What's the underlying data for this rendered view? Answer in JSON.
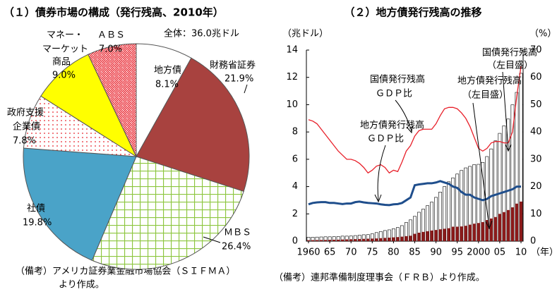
{
  "chart_data": [
    {
      "type": "pie",
      "title": "（１）債券市場の構成（発行残高、2010年）",
      "subtitle": "全体：36.0兆ドル",
      "categories": [
        [
          "地方債"
        ],
        [
          "財務省証券"
        ],
        [
          "ＭＢＳ"
        ],
        [
          "社債"
        ],
        [
          "政府支援",
          "企業債"
        ],
        [
          "マネー・",
          "マーケット",
          "商品"
        ],
        [
          "ＡＢＳ"
        ]
      ],
      "values": [
        8.1,
        21.9,
        26.4,
        19.8,
        7.8,
        9.0,
        7.0
      ],
      "value_labels": [
        "8.1%",
        "21.9%",
        "26.4%",
        "19.8%",
        "7.8%",
        "9.0%",
        "7.0%"
      ],
      "colors": [
        "#ffffff",
        "#a8423f",
        "#8dc63f",
        "#4aa3c8",
        "#e8202a",
        "#ffff00",
        "#e8202a"
      ],
      "patterns": [
        "solid",
        "solid",
        "grid",
        "solid",
        "dots",
        "solid",
        "stripes"
      ],
      "notes": [
        "（備考）アメリカ証券業金融市場協会（ＳＩＦＭＡ）",
        "より作成。"
      ]
    },
    {
      "type": "bar",
      "title": "（２）地方債発行残高の推移",
      "ylabel": "（兆ドル）",
      "y2label": "（%）",
      "xlabel": "（年）",
      "x": [
        1960,
        1961,
        1962,
        1963,
        1964,
        1965,
        1966,
        1967,
        1968,
        1969,
        1970,
        1971,
        1972,
        1973,
        1974,
        1975,
        1976,
        1977,
        1978,
        1979,
        1980,
        1981,
        1982,
        1983,
        1984,
        1985,
        1986,
        1987,
        1988,
        1989,
        1990,
        1991,
        1992,
        1993,
        1994,
        1995,
        1996,
        1997,
        1998,
        1999,
        2000,
        2001,
        2002,
        2003,
        2004,
        2005,
        2006,
        2007,
        2008,
        2009,
        2010
      ],
      "xlim": [
        1959.5,
        2010.5
      ],
      "xticks": [
        1960,
        {
          "value": 1965,
          "label": "65"
        },
        {
          "value": 1970,
          "label": "70"
        },
        {
          "value": 1975,
          "label": "75"
        },
        {
          "value": 1980,
          "label": "80"
        },
        {
          "value": 1985,
          "label": "85"
        },
        {
          "value": 1990,
          "label": "90"
        },
        {
          "value": 1995,
          "label": "95"
        },
        2000,
        {
          "value": 2005,
          "label": "05"
        },
        {
          "value": 2010,
          "label": "10"
        }
      ],
      "ylim": [
        0,
        14
      ],
      "yticks": [
        0,
        2,
        4,
        6,
        8,
        10,
        12,
        14
      ],
      "y2lim": [
        0,
        70
      ],
      "y2ticks": [
        0,
        10,
        20,
        30,
        40,
        50,
        60,
        70
      ],
      "series": [
        {
          "name": [
            "国債発行残高",
            "（左目盛）"
          ],
          "type": "bar",
          "color": "#ffffff",
          "values": [
            0.29,
            0.29,
            0.3,
            0.31,
            0.32,
            0.32,
            0.33,
            0.34,
            0.37,
            0.37,
            0.38,
            0.41,
            0.44,
            0.47,
            0.48,
            0.54,
            0.63,
            0.71,
            0.78,
            0.83,
            0.91,
            1.0,
            1.14,
            1.37,
            1.56,
            1.82,
            2.12,
            2.35,
            2.6,
            2.86,
            3.21,
            3.6,
            4.0,
            4.35,
            4.64,
            4.92,
            5.18,
            5.37,
            5.48,
            5.61,
            5.63,
            5.77,
            6.2,
            6.76,
            7.35,
            7.9,
            8.45,
            8.95,
            9.99,
            10.9,
            12.3
          ]
        },
        {
          "name": [
            "地方債発行残高",
            "（左目盛）"
          ],
          "type": "bar",
          "color": "#8b1a1a",
          "values": [
            0.07,
            0.075,
            0.08,
            0.085,
            0.09,
            0.1,
            0.105,
            0.11,
            0.12,
            0.13,
            0.14,
            0.15,
            0.16,
            0.17,
            0.18,
            0.19,
            0.2,
            0.22,
            0.24,
            0.26,
            0.28,
            0.3,
            0.33,
            0.37,
            0.4,
            0.54,
            0.62,
            0.68,
            0.73,
            0.78,
            0.82,
            0.87,
            0.91,
            0.95,
            1.06,
            1.06,
            1.08,
            1.13,
            1.21,
            1.28,
            1.33,
            1.4,
            1.55,
            1.66,
            1.77,
            2.0,
            2.13,
            2.28,
            2.48,
            2.75,
            2.9
          ]
        },
        {
          "name": [
            "国債発行残高",
            "ＧＤＰ比"
          ],
          "type": "line",
          "axis": "y2",
          "color": "#e8202a",
          "values": [
            44.5,
            44,
            43,
            41,
            39,
            37,
            35,
            33,
            31.5,
            30,
            30,
            29.5,
            28.5,
            27,
            25,
            26,
            27.5,
            28,
            27,
            25,
            26,
            25.5,
            29,
            33,
            35,
            38.5,
            40.5,
            41,
            41,
            41,
            43,
            46,
            48.5,
            49,
            49,
            48.5,
            47,
            45,
            42,
            38,
            34,
            33,
            34,
            36,
            36.5,
            36.5,
            36,
            36,
            40,
            53,
            64
          ]
        },
        {
          "name": [
            "地方債発行残高",
            "ＧＤＰ比"
          ],
          "type": "line",
          "axis": "y2",
          "color": "#1f4e8c",
          "values": [
            13.5,
            14,
            14.2,
            14.3,
            14.3,
            14,
            14,
            13.8,
            13.6,
            13.8,
            13.8,
            14.3,
            14.5,
            14.2,
            14,
            13.9,
            13.8,
            13.5,
            13.3,
            13.2,
            13.5,
            13.6,
            14,
            15,
            16,
            20.5,
            20.8,
            21,
            21.2,
            21.2,
            21.5,
            22,
            21.5,
            21,
            20,
            19.5,
            18,
            17,
            17,
            16,
            15.5,
            15,
            15.5,
            16.5,
            17,
            17.5,
            18,
            18.5,
            19,
            20,
            20
          ]
        }
      ],
      "notes": [
        "（備考）連邦準備制度理事会（ＦＲＢ）より作成。"
      ]
    }
  ]
}
